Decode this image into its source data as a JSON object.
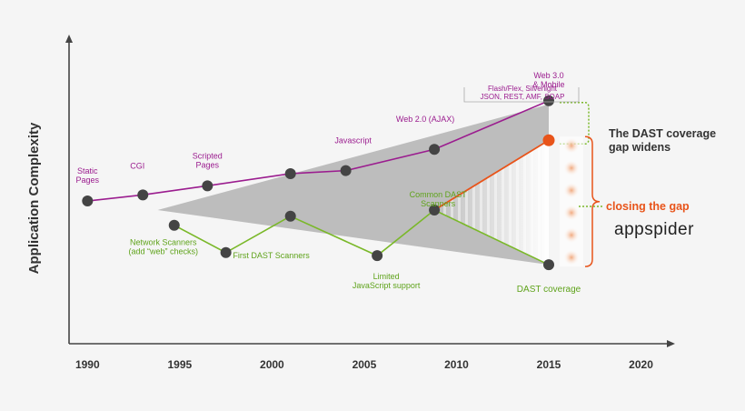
{
  "chart_data": {
    "type": "line",
    "title": "",
    "ylabel": "Application Complexity",
    "xlabel": "",
    "xlim": [
      1989,
      2021.5
    ],
    "ylim": [
      0,
      100
    ],
    "x_ticks": [
      "1990",
      "1995",
      "2000",
      "2005",
      "2010",
      "2015",
      "2020"
    ],
    "series": [
      {
        "name": "",
        "color": "#9b1d8f",
        "points": [
          {
            "x": 1990,
            "y": 47,
            "label": [
              "Static",
              "Pages"
            ]
          },
          {
            "x": 1993,
            "y": 49,
            "label": [
              "CGI"
            ]
          },
          {
            "x": 1996.5,
            "y": 52,
            "label": [
              "Scripted",
              "Pages"
            ]
          },
          {
            "x": 2001,
            "y": 56,
            "label": []
          },
          {
            "x": 2004,
            "y": 57,
            "label": [
              "Javascript"
            ]
          },
          {
            "x": 2008.8,
            "y": 64,
            "label": [
              "Web 2.0 (AJAX)"
            ]
          },
          {
            "x": 2015,
            "y": 80,
            "label": [
              "Web 3.0",
              "& Mobile"
            ]
          }
        ]
      },
      {
        "name": "",
        "color": "#7ab829",
        "points": [
          {
            "x": 1994.7,
            "y": 39,
            "label": [
              "Network Scanners",
              "(add “web” checks)"
            ]
          },
          {
            "x": 1997.5,
            "y": 30,
            "label": [
              "First DAST Scanners"
            ]
          },
          {
            "x": 2001,
            "y": 42,
            "label": []
          },
          {
            "x": 2005.7,
            "y": 29,
            "label": [
              "Limited",
              "JavaScript support"
            ]
          },
          {
            "x": 2008.8,
            "y": 44,
            "label": [
              "Common DAST",
              "Scanners"
            ]
          },
          {
            "x": 2015,
            "y": 26,
            "label": [
              "DAST coverage"
            ]
          }
        ]
      }
    ],
    "appspider_point": {
      "x": 2015,
      "y": 67,
      "color": "#e8541a"
    },
    "top_note": [
      "Flash/Flex, Silverlight",
      "JSON, REST, AMF, SOAP"
    ],
    "gap_title": [
      "The DAST coverage",
      "gap widens"
    ],
    "closing_label": "closing the gap",
    "brand": "appspider",
    "grid": false
  }
}
